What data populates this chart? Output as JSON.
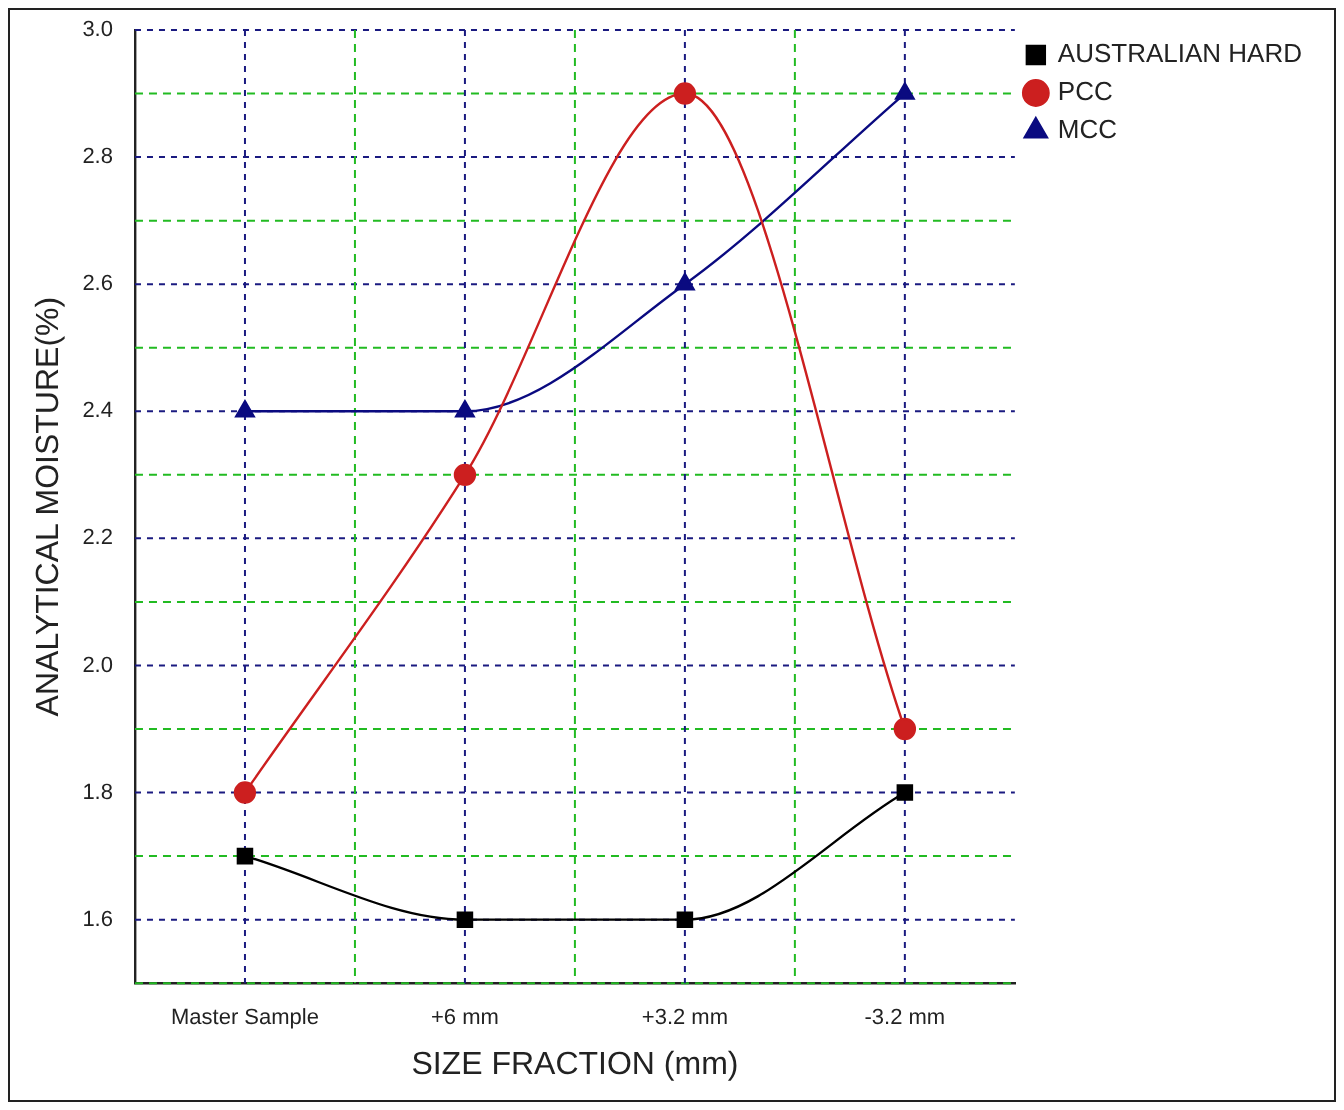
{
  "chart_data": {
    "type": "line",
    "xlabel": "SIZE FRACTION (mm)",
    "ylabel": "ANALYTICAL MOISTURE(%)",
    "categories": [
      "Master Sample",
      "+6 mm",
      "+3.2 mm",
      "-3.2 mm"
    ],
    "series": [
      {
        "name": "AUSTRALIAN HARD",
        "color": "#000000",
        "marker": "square",
        "values": [
          1.7,
          1.6,
          1.6,
          1.8
        ]
      },
      {
        "name": "PCC",
        "color": "#cc1f1f",
        "marker": "circle",
        "values": [
          1.8,
          2.3,
          2.9,
          1.9
        ]
      },
      {
        "name": "MCC",
        "color": "#0a0a80",
        "marker": "triangle",
        "values": [
          2.4,
          2.4,
          2.6,
          2.9
        ]
      }
    ],
    "ylim": [
      1.5,
      3.0
    ],
    "yticks": [
      {
        "value": 1.5,
        "label": null
      },
      1.6,
      {
        "value": 1.7,
        "label": null
      },
      1.8,
      {
        "value": 1.9,
        "label": null
      },
      {
        "value": 2.0,
        "label": "2.0"
      },
      {
        "value": 2.1,
        "label": null
      },
      2.2,
      {
        "value": 2.3,
        "label": null
      },
      2.4,
      {
        "value": 2.5,
        "label": null
      },
      2.6,
      {
        "value": 2.7,
        "label": null
      },
      2.8,
      {
        "value": 2.9,
        "label": null
      },
      {
        "value": 3.0,
        "label": "3.0"
      }
    ],
    "grid": true,
    "legend": "top right",
    "line_style": "solid"
  }
}
